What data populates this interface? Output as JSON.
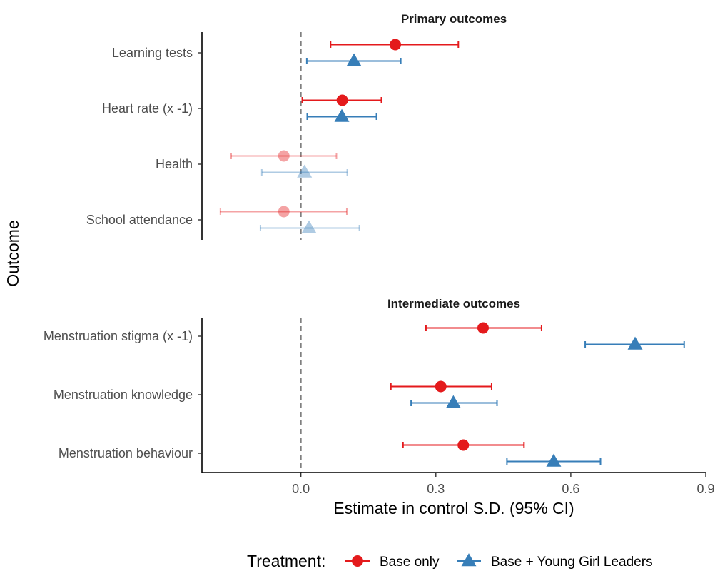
{
  "chart_data": {
    "type": "scatter",
    "subtype": "coefficient-plot-with-confidence-intervals",
    "xlabel": "Estimate in control S.D. (95% CI)",
    "ylabel": "Outcome",
    "xlim": [
      -0.22,
      0.9
    ],
    "x_ticks": [
      0.0,
      0.3,
      0.6,
      0.9
    ],
    "x_tick_labels": [
      "0.0",
      "0.3",
      "0.6",
      "0.9"
    ],
    "reference_line": 0.0,
    "grid": false,
    "legend": {
      "title": "Treatment:",
      "position": "bottom",
      "entries": [
        {
          "name": "Base only",
          "color": "#e41a1c",
          "marker": "circle"
        },
        {
          "name": "Base + Young Girl Leaders",
          "color": "#377eb8",
          "marker": "triangle"
        }
      ]
    },
    "panels": [
      {
        "title": "Primary outcomes",
        "outcomes": [
          {
            "label": "Learning tests",
            "series": [
              {
                "name": "Base only",
                "estimate": 0.21,
                "ci": [
                  0.066,
                  0.35
                ],
                "significant": true
              },
              {
                "name": "Base + Young Girl Leaders",
                "estimate": 0.118,
                "ci": [
                  0.013,
                  0.222
                ],
                "significant": true
              }
            ]
          },
          {
            "label": "Heart rate (x -1)",
            "series": [
              {
                "name": "Base only",
                "estimate": 0.092,
                "ci": [
                  0.003,
                  0.179
                ],
                "significant": true
              },
              {
                "name": "Base + Young Girl Leaders",
                "estimate": 0.091,
                "ci": [
                  0.014,
                  0.168
                ],
                "significant": true
              }
            ]
          },
          {
            "label": "Health",
            "series": [
              {
                "name": "Base only",
                "estimate": -0.038,
                "ci": [
                  -0.155,
                  0.079
                ],
                "significant": false
              },
              {
                "name": "Base + Young Girl Leaders",
                "estimate": 0.008,
                "ci": [
                  -0.087,
                  0.103
                ],
                "significant": false
              }
            ]
          },
          {
            "label": "School attendance",
            "series": [
              {
                "name": "Base only",
                "estimate": -0.038,
                "ci": [
                  -0.179,
                  0.102
                ],
                "significant": false
              },
              {
                "name": "Base + Young Girl Leaders",
                "estimate": 0.018,
                "ci": [
                  -0.09,
                  0.13
                ],
                "significant": false
              }
            ]
          }
        ]
      },
      {
        "title": "Intermediate outcomes",
        "outcomes": [
          {
            "label": "Menstruation stigma (x -1)",
            "series": [
              {
                "name": "Base only",
                "estimate": 0.405,
                "ci": [
                  0.278,
                  0.535
                ],
                "significant": true
              },
              {
                "name": "Base + Young Girl Leaders",
                "estimate": 0.743,
                "ci": [
                  0.632,
                  0.852
                ],
                "significant": true
              }
            ]
          },
          {
            "label": "Menstruation knowledge",
            "series": [
              {
                "name": "Base only",
                "estimate": 0.311,
                "ci": [
                  0.2,
                  0.424
                ],
                "significant": true
              },
              {
                "name": "Base + Young Girl Leaders",
                "estimate": 0.339,
                "ci": [
                  0.245,
                  0.436
                ],
                "significant": true
              }
            ]
          },
          {
            "label": "Menstruation behaviour",
            "series": [
              {
                "name": "Base only",
                "estimate": 0.361,
                "ci": [
                  0.227,
                  0.496
                ],
                "significant": true
              },
              {
                "name": "Base + Young Girl Leaders",
                "estimate": 0.562,
                "ci": [
                  0.458,
                  0.666
                ],
                "significant": true
              }
            ]
          }
        ]
      }
    ]
  }
}
